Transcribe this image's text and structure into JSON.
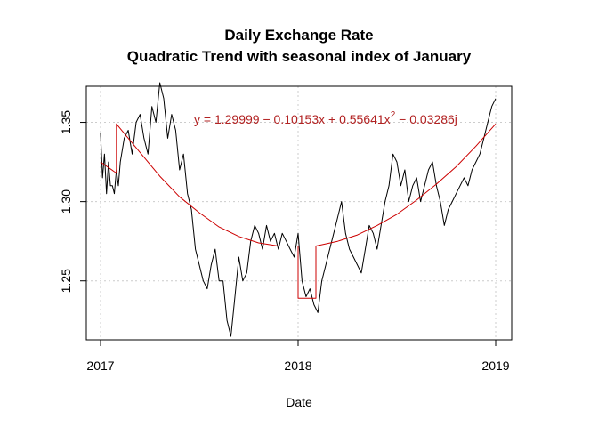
{
  "chart_data": {
    "type": "line",
    "title": "Daily Exchange Rate",
    "subtitle": "Quadratic Trend with seasonal index of January",
    "xlabel": "Date",
    "ylabel": "",
    "x_ticks": [
      "2017",
      "2018",
      "2019"
    ],
    "y_ticks": [
      "1.25",
      "1.30",
      "1.35"
    ],
    "xlim": [
      2017.0,
      2019.0
    ],
    "ylim": [
      1.21,
      1.375
    ],
    "grid": true,
    "equation": {
      "prefix": "y = 1.29999 − 0.10153x + 0.55641x",
      "superscript": "2",
      "suffix": " − 0.03286j"
    },
    "series": [
      {
        "color": "#000000",
        "x": [
          2017.0,
          2017.01,
          2017.02,
          2017.03,
          2017.04,
          2017.05,
          2017.06,
          2017.07,
          2017.08,
          2017.09,
          2017.1,
          2017.12,
          2017.14,
          2017.16,
          2017.18,
          2017.2,
          2017.22,
          2017.24,
          2017.26,
          2017.28,
          2017.3,
          2017.32,
          2017.34,
          2017.36,
          2017.38,
          2017.4,
          2017.42,
          2017.44,
          2017.46,
          2017.48,
          2017.5,
          2017.52,
          2017.54,
          2017.56,
          2017.58,
          2017.6,
          2017.62,
          2017.64,
          2017.66,
          2017.68,
          2017.7,
          2017.72,
          2017.74,
          2017.76,
          2017.78,
          2017.8,
          2017.82,
          2017.84,
          2017.86,
          2017.88,
          2017.9,
          2017.92,
          2017.94,
          2017.96,
          2017.98,
          2018.0,
          2018.02,
          2018.04,
          2018.06,
          2018.08,
          2018.1,
          2018.12,
          2018.14,
          2018.16,
          2018.18,
          2018.2,
          2018.22,
          2018.24,
          2018.26,
          2018.28,
          2018.3,
          2018.32,
          2018.34,
          2018.36,
          2018.38,
          2018.4,
          2018.42,
          2018.44,
          2018.46,
          2018.48,
          2018.5,
          2018.52,
          2018.54,
          2018.56,
          2018.58,
          2018.6,
          2018.62,
          2018.64,
          2018.66,
          2018.68,
          2018.7,
          2018.72,
          2018.74,
          2018.76,
          2018.78,
          2018.8,
          2018.82,
          2018.84,
          2018.86,
          2018.88,
          2018.9,
          2018.92,
          2018.94,
          2018.96,
          2018.98,
          2019.0
        ],
        "y": [
          1.343,
          1.315,
          1.33,
          1.305,
          1.325,
          1.31,
          1.31,
          1.305,
          1.32,
          1.31,
          1.325,
          1.34,
          1.345,
          1.33,
          1.35,
          1.355,
          1.34,
          1.33,
          1.36,
          1.35,
          1.375,
          1.365,
          1.34,
          1.355,
          1.345,
          1.32,
          1.33,
          1.305,
          1.295,
          1.27,
          1.26,
          1.25,
          1.245,
          1.26,
          1.27,
          1.25,
          1.25,
          1.225,
          1.215,
          1.24,
          1.265,
          1.25,
          1.255,
          1.275,
          1.285,
          1.28,
          1.27,
          1.285,
          1.275,
          1.28,
          1.27,
          1.28,
          1.275,
          1.27,
          1.265,
          1.28,
          1.25,
          1.24,
          1.245,
          1.235,
          1.23,
          1.25,
          1.26,
          1.27,
          1.28,
          1.29,
          1.3,
          1.28,
          1.27,
          1.265,
          1.26,
          1.255,
          1.27,
          1.285,
          1.28,
          1.27,
          1.285,
          1.3,
          1.31,
          1.33,
          1.325,
          1.31,
          1.32,
          1.3,
          1.31,
          1.315,
          1.3,
          1.31,
          1.32,
          1.325,
          1.31,
          1.3,
          1.285,
          1.295,
          1.3,
          1.305,
          1.31,
          1.315,
          1.31,
          1.32,
          1.325,
          1.33,
          1.34,
          1.35,
          1.36,
          1.365
        ]
      },
      {
        "color": "#cc0000",
        "x": [
          2017.0,
          2017.08,
          2017.08,
          2017.2,
          2017.3,
          2017.4,
          2017.5,
          2017.6,
          2017.7,
          2017.8,
          2017.9,
          2018.0,
          2018.0,
          2018.09,
          2018.09,
          2018.2,
          2018.3,
          2018.4,
          2018.5,
          2018.6,
          2018.7,
          2018.8,
          2018.9,
          2019.0
        ],
        "y": [
          1.325,
          1.318,
          1.349,
          1.331,
          1.316,
          1.303,
          1.293,
          1.284,
          1.278,
          1.274,
          1.272,
          1.272,
          1.239,
          1.239,
          1.272,
          1.275,
          1.279,
          1.285,
          1.292,
          1.301,
          1.311,
          1.322,
          1.335,
          1.349
        ]
      }
    ]
  }
}
